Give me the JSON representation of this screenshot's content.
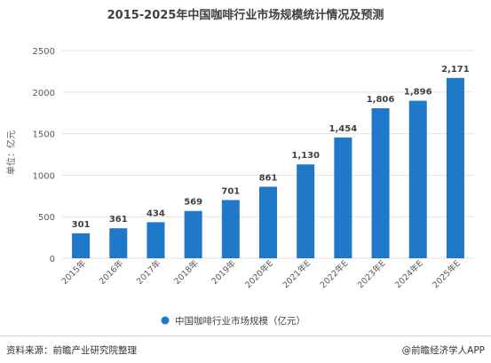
{
  "chart_data": {
    "type": "bar",
    "title": "2015-2025年中国咖啡行业市场规模统计情况及预测",
    "ylabel": "单位：亿元",
    "xlabel": "",
    "categories": [
      "2015年",
      "2016年",
      "2017年",
      "2018年",
      "2019年",
      "2020年E",
      "2021年E",
      "2022年E",
      "2023年E",
      "2024年E",
      "2025年E"
    ],
    "series": [
      {
        "name": "中国咖啡行业市场规模（亿元）",
        "values": [
          301,
          361,
          434,
          569,
          701,
          861,
          1130,
          1454,
          1806,
          1896,
          2171
        ],
        "value_labels": [
          "301",
          "361",
          "434",
          "569",
          "701",
          "861",
          "1,130",
          "1,454",
          "1,806",
          "1,896",
          "2,171"
        ],
        "color": "#1f78c8"
      }
    ],
    "ylim": [
      0,
      2500
    ],
    "yticks": [
      "0",
      "500",
      "1000",
      "1500",
      "2000",
      "2500"
    ],
    "ytick_values": [
      0,
      500,
      1000,
      1500,
      2000,
      2500
    ],
    "grid": true,
    "legend": "bottom-center"
  },
  "colors": {
    "bar": "#1f78c8",
    "grid": "#e3e3e3",
    "axis_text": "#595959",
    "value_text": "#404040",
    "legend_marker": "#1f78c8"
  },
  "footer": {
    "source": "资料来源：前瞻产业研究院整理",
    "credit": "@前瞻经济学人APP"
  }
}
